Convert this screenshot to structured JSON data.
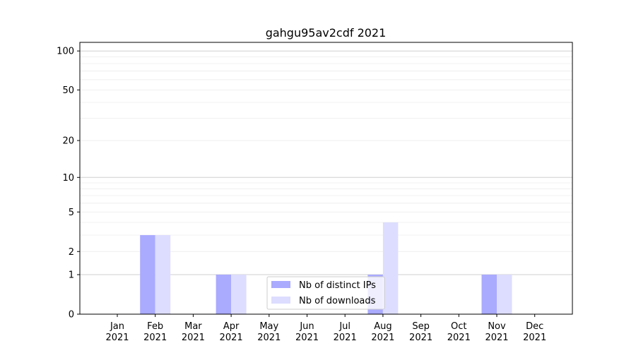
{
  "chart_data": {
    "type": "bar",
    "title": "gahgu95av2cdf 2021",
    "xlabel": "",
    "ylabel": "",
    "yscale": "symlog",
    "ylim": [
      0,
      116
    ],
    "yticks": [
      0,
      1,
      2,
      5,
      10,
      20,
      50,
      100
    ],
    "grid": true,
    "legend_position": "lower-center",
    "categories": [
      "Jan\n2021",
      "Feb\n2021",
      "Mar\n2021",
      "Apr\n2021",
      "May\n2021",
      "Jun\n2021",
      "Jul\n2021",
      "Aug\n2021",
      "Sep\n2021",
      "Oct\n2021",
      "Nov\n2021",
      "Dec\n2021"
    ],
    "series": [
      {
        "name": "Nb of distinct IPs",
        "color": "#aaaaff",
        "values": [
          0,
          3,
          0,
          1,
          0,
          0,
          0,
          1,
          0,
          0,
          1,
          0
        ]
      },
      {
        "name": "Nb of downloads",
        "color": "#ddddff",
        "values": [
          0,
          3,
          0,
          1,
          0,
          0,
          0,
          4,
          0,
          0,
          1,
          0
        ]
      }
    ]
  }
}
